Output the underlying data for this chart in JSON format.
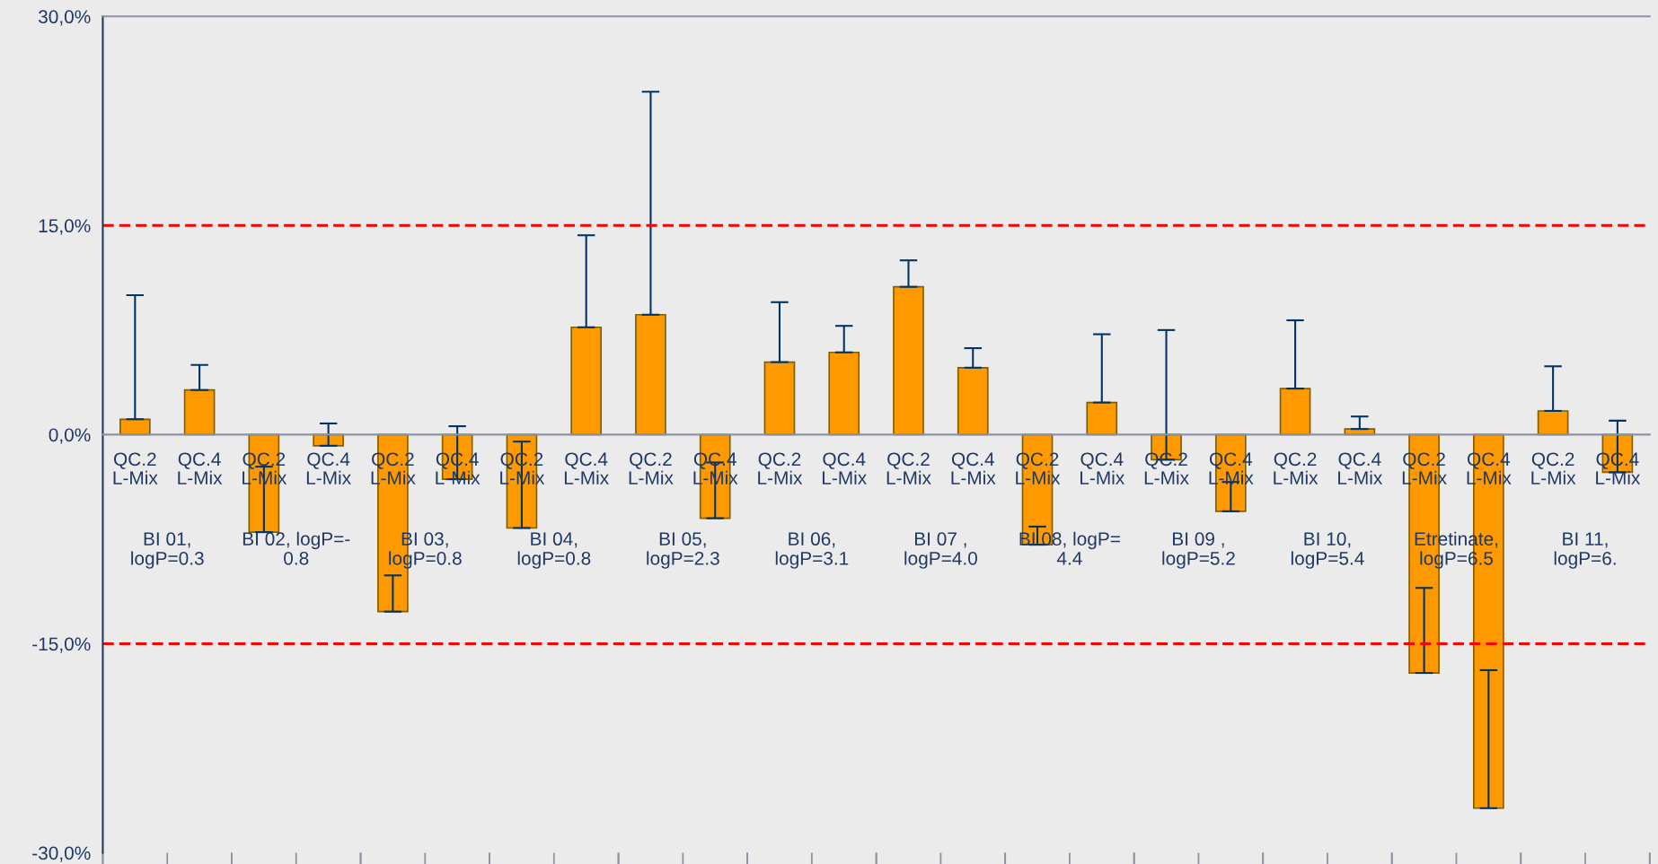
{
  "chart_data": {
    "type": "bar",
    "categories": [
      "QC.2\nL-Mix",
      "QC.4\nL-Mix",
      "QC.2\nL-Mix",
      "QC.4\nL-Mix",
      "QC.2\nL-Mix",
      "QC.4\nL-Mix",
      "QC.2\nL-Mix",
      "QC.4\nL-Mix",
      "QC.2\nL-Mix",
      "QC.4\nL-Mix",
      "QC.2\nL-Mix",
      "QC.4\nL-Mix",
      "QC.2\nL-Mix",
      "QC.4\nL-Mix",
      "QC.2\nL-Mix",
      "QC.4\nL-Mix",
      "QC.2\nL-Mix",
      "QC.4\nL-Mix",
      "QC.2\nL-Mix",
      "QC.4\nL-Mix",
      "QC.2\nL-Mix",
      "QC.4\nL-Mix",
      "QC.2\nL-Mix",
      "QC.4\nL-Mix"
    ],
    "series": [
      {
        "color": "#ff9900",
        "values": [
          1.1,
          3.2,
          -7.0,
          -0.8,
          -12.7,
          -3.2,
          -6.7,
          7.7,
          8.6,
          -6.0,
          5.2,
          5.9,
          10.6,
          4.8,
          -7.9,
          2.3,
          -1.8,
          -5.5,
          3.3,
          0.4,
          -17.1,
          -26.8,
          1.7,
          -2.7
        ],
        "errors": [
          [
            1.1,
            10.0
          ],
          [
            3.2,
            5.0
          ],
          [
            -7.0,
            -2.3
          ],
          [
            -0.8,
            0.8
          ],
          [
            -12.7,
            -10.1
          ],
          [
            -3.2,
            0.6
          ],
          [
            -6.7,
            -0.5
          ],
          [
            7.7,
            14.3
          ],
          [
            8.6,
            24.6
          ],
          [
            -6.0,
            -2.0
          ],
          [
            5.2,
            9.5
          ],
          [
            5.9,
            7.8
          ],
          [
            10.6,
            12.5
          ],
          [
            4.8,
            6.2
          ],
          [
            -7.9,
            -6.6
          ],
          [
            2.3,
            7.2
          ],
          [
            -1.8,
            7.5
          ],
          [
            -5.5,
            -3.4
          ],
          [
            3.3,
            8.2
          ],
          [
            0.4,
            1.3
          ],
          [
            -17.1,
            -11.0
          ],
          [
            -26.8,
            -16.9
          ],
          [
            1.7,
            4.9
          ],
          [
            -2.7,
            1.0
          ]
        ]
      }
    ],
    "annotations": [
      "BI 01,\nlogP=0.3",
      "BI 02, logP=-\n0.8",
      "BI 03,\nlogP=0.8",
      "BI 04,\nlogP=0.8",
      "BI 05,\nlogP=2.3",
      "BI 06,\nlogP=3.1",
      "BI 07 ,\nlogP=4.0",
      "BI 08, logP=\n4.4",
      "BI 09 ,\nlogP=5.2",
      "BI 10,\nlogP=5.4",
      "Etretinate,\nlogP=6.5",
      "BI 11,\nlogP=6."
    ],
    "ylim": [
      -30,
      30
    ],
    "yticks": [
      {
        "value": -30,
        "label": "-30,0%"
      },
      {
        "value": -15,
        "label": "-15,0%"
      },
      {
        "value": 0,
        "label": "0,0%"
      },
      {
        "value": 15,
        "label": "15,0%"
      },
      {
        "value": 30,
        "label": "30,0%"
      }
    ],
    "ref_lines": [
      {
        "axis": "y",
        "value": 15,
        "color": "#ff0000",
        "line_style": "dashed"
      },
      {
        "axis": "y",
        "value": -15,
        "color": "#ff0000",
        "line_style": "dashed"
      }
    ],
    "grid": false
  }
}
